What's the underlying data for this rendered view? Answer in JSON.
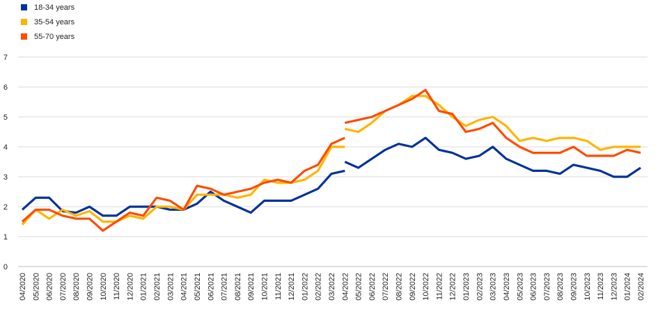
{
  "chart_data": {
    "type": "line",
    "title": "",
    "xlabel": "",
    "ylabel": "",
    "ylim": [
      0,
      7
    ],
    "yticks": [
      0,
      1,
      2,
      3,
      4,
      5,
      6,
      7
    ],
    "grid": "horizontal",
    "legend_position": "top-left",
    "x": [
      "04/2020",
      "05/2020",
      "06/2020",
      "07/2020",
      "08/2020",
      "09/2020",
      "10/2020",
      "11/2020",
      "12/2020",
      "01/2021",
      "02/2021",
      "03/2021",
      "04/2021",
      "05/2021",
      "06/2021",
      "07/2021",
      "08/2021",
      "09/2021",
      "10/2021",
      "11/2021",
      "12/2021",
      "01/2022",
      "02/2022",
      "03/2022",
      "04/2022",
      "05/2022",
      "06/2022",
      "07/2022",
      "08/2022",
      "09/2022",
      "10/2022",
      "11/2022",
      "12/2022",
      "01/2023",
      "02/2023",
      "03/2023",
      "04/2023",
      "05/2023",
      "06/2023",
      "07/2023",
      "08/2023",
      "09/2023",
      "10/2023",
      "11/2023",
      "12/2023",
      "01/2024",
      "02/2024"
    ],
    "series": [
      {
        "name": "18-34 years",
        "color": "#003299",
        "segments": [
          {
            "start": 0,
            "values": [
              1.9,
              2.3,
              2.3,
              1.85,
              1.8,
              2.0,
              1.7,
              1.7,
              2.0,
              2.0,
              2.0,
              1.9,
              1.9,
              2.1,
              2.5,
              2.2,
              2.0,
              1.8,
              2.2,
              2.2,
              2.2,
              2.4,
              2.6,
              3.1,
              3.2
            ]
          },
          {
            "start": 24,
            "values": [
              3.5,
              3.3,
              3.6,
              3.9,
              4.1,
              4.0,
              4.3,
              3.9,
              3.8,
              3.6,
              3.7,
              4.0,
              3.6,
              3.4,
              3.2,
              3.2,
              3.1,
              3.4,
              3.3,
              3.2,
              3.0,
              3.0,
              3.3
            ]
          }
        ]
      },
      {
        "name": "35-54 years",
        "color": "#FFB400",
        "segments": [
          {
            "start": 0,
            "values": [
              1.4,
              1.9,
              1.6,
              1.9,
              1.7,
              1.85,
              1.5,
              1.5,
              1.7,
              1.6,
              2.0,
              2.0,
              1.9,
              2.4,
              2.4,
              2.4,
              2.3,
              2.4,
              2.9,
              2.8,
              2.8,
              2.9,
              3.2,
              4.0,
              4.0
            ]
          },
          {
            "start": 24,
            "values": [
              4.6,
              4.5,
              4.8,
              5.2,
              5.4,
              5.7,
              5.7,
              5.4,
              5.0,
              4.7,
              4.9,
              5.0,
              4.7,
              4.2,
              4.3,
              4.2,
              4.3,
              4.3,
              4.2,
              3.9,
              4.0,
              4.0,
              4.0
            ]
          }
        ]
      },
      {
        "name": "55-70 years",
        "color": "#FF4B00",
        "segments": [
          {
            "start": 0,
            "values": [
              1.5,
              1.9,
              1.9,
              1.7,
              1.6,
              1.6,
              1.2,
              1.5,
              1.8,
              1.7,
              2.3,
              2.2,
              1.9,
              2.7,
              2.6,
              2.4,
              2.5,
              2.6,
              2.8,
              2.9,
              2.8,
              3.2,
              3.4,
              4.1,
              4.3
            ]
          },
          {
            "start": 24,
            "values": [
              4.8,
              4.9,
              5.0,
              5.2,
              5.4,
              5.6,
              5.9,
              5.2,
              5.1,
              4.5,
              4.6,
              4.8,
              4.3,
              4.0,
              3.8,
              3.8,
              3.8,
              4.0,
              3.7,
              3.7,
              3.7,
              3.9,
              3.8
            ]
          }
        ]
      }
    ]
  }
}
